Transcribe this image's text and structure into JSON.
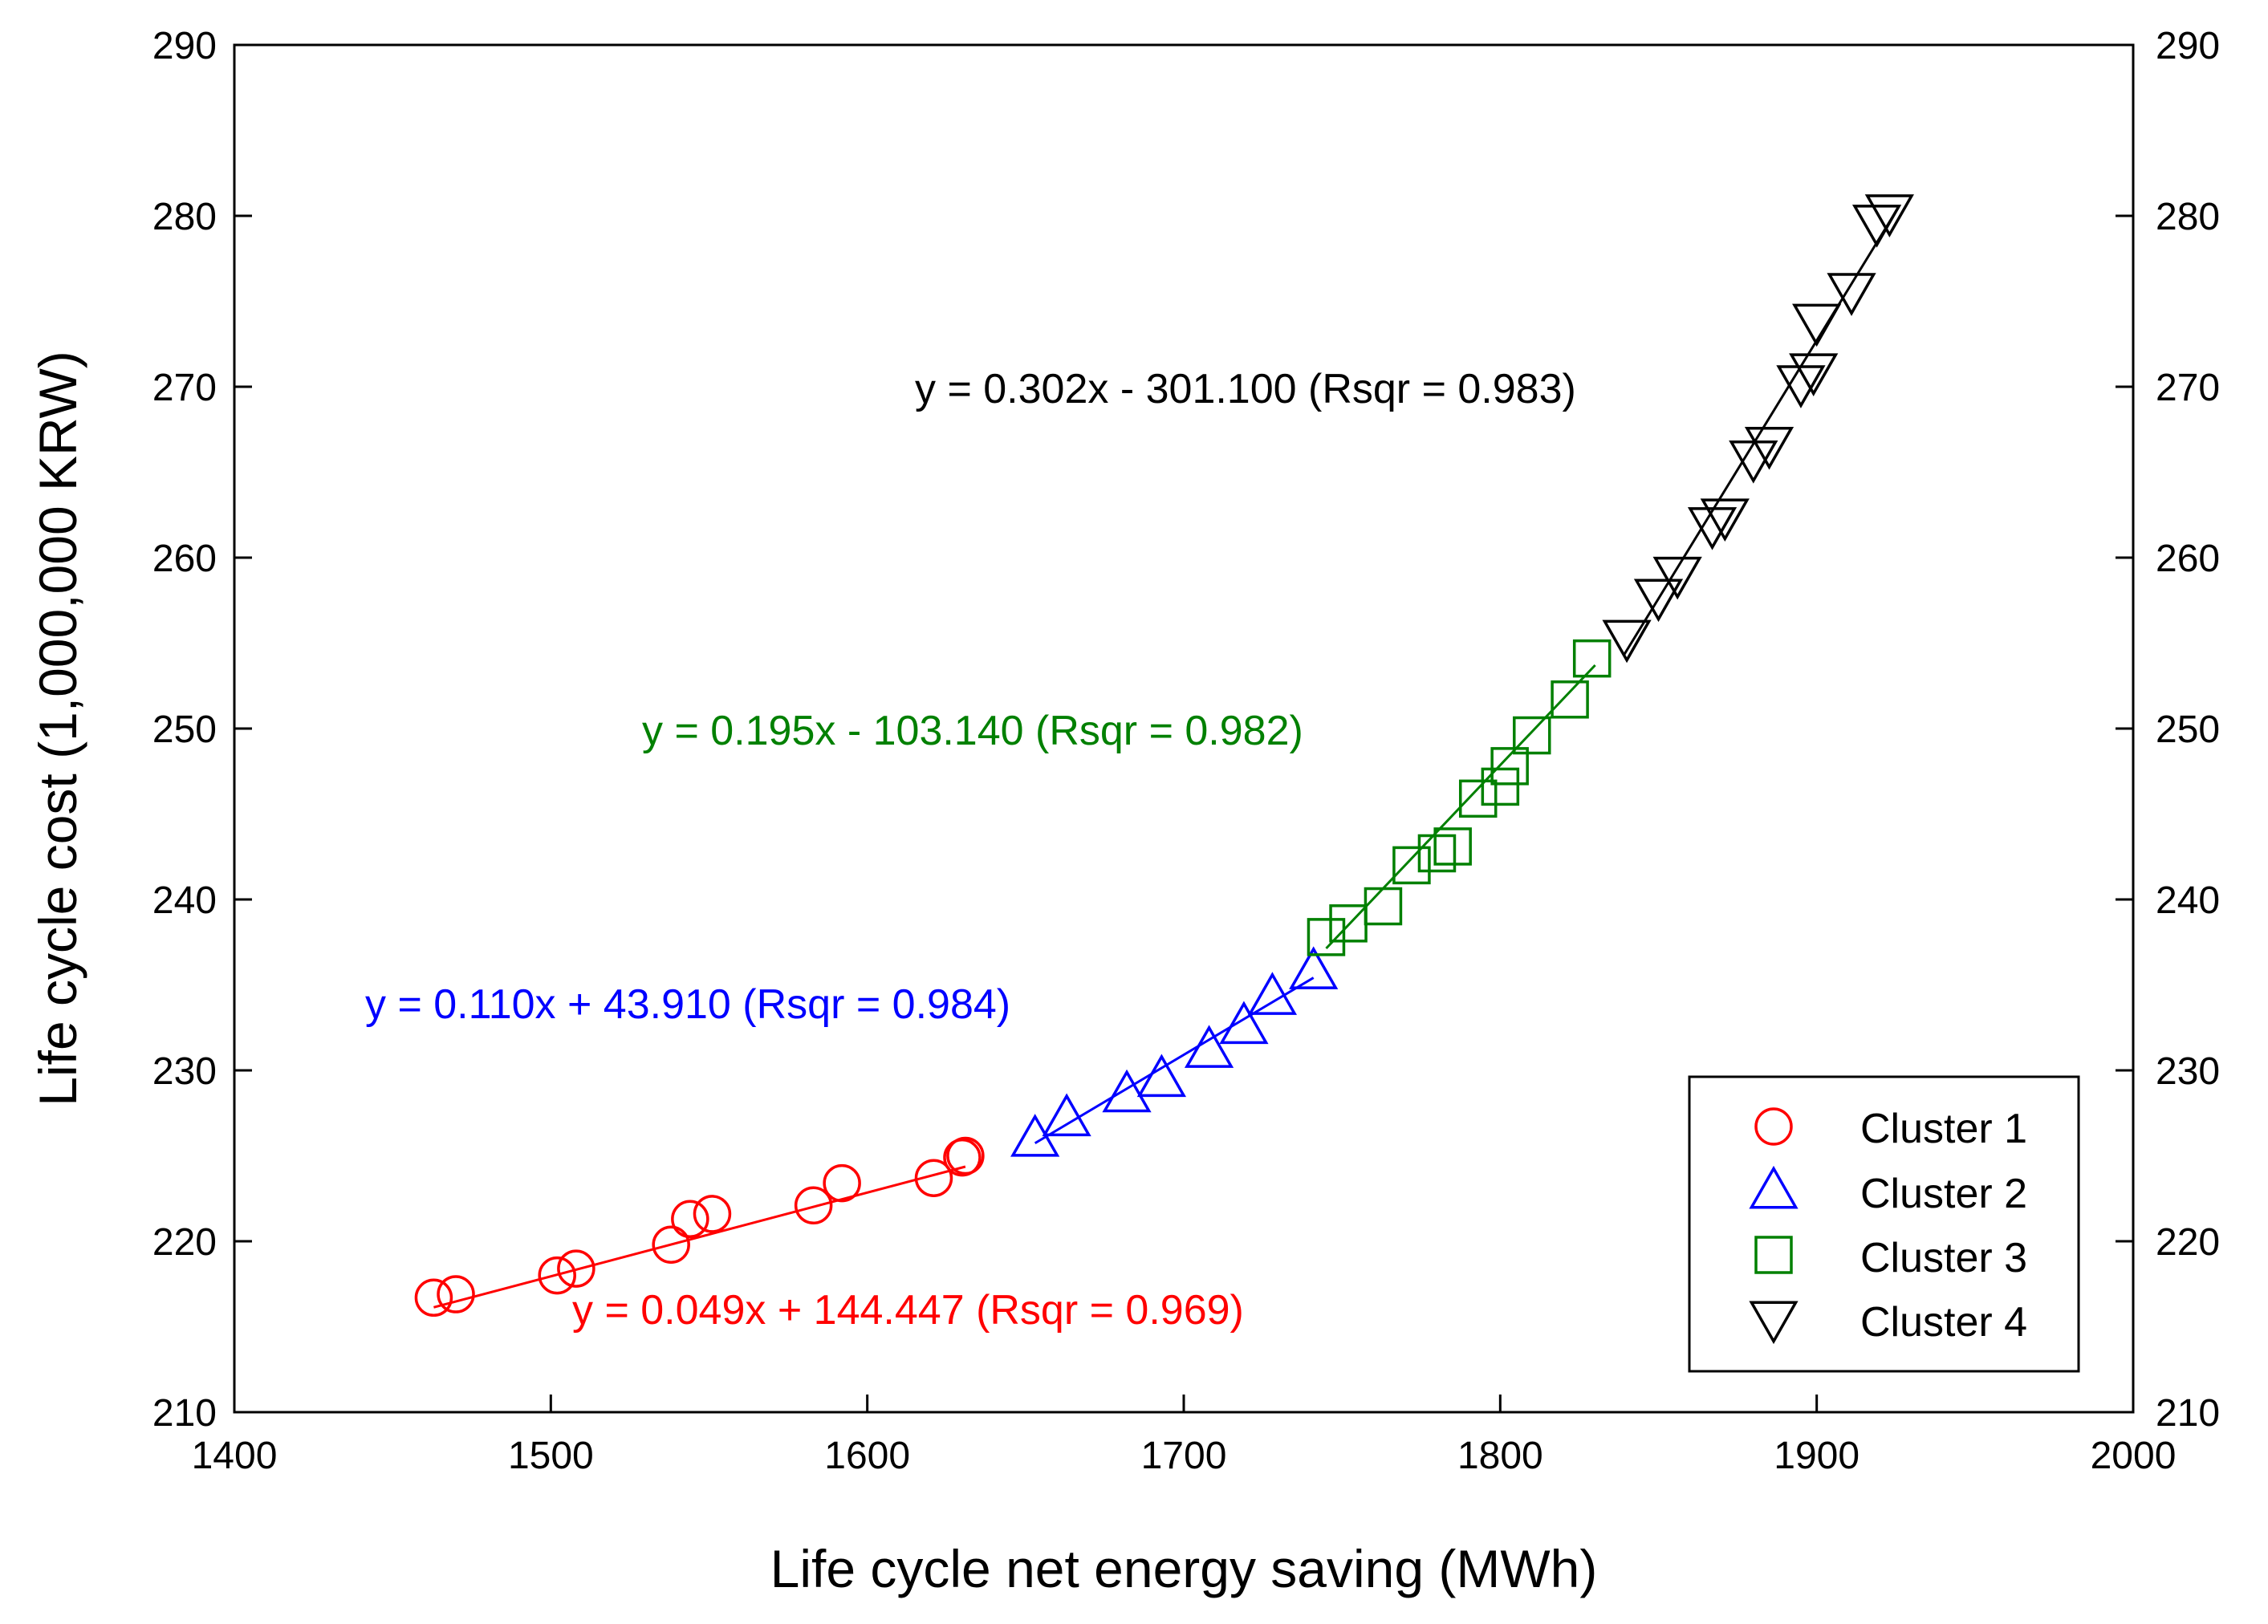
{
  "chart_data": {
    "type": "scatter",
    "title": "",
    "xlabel": "Life cycle net energy saving (MWh)",
    "ylabel": "Life cycle cost (1,000,000 KRW)",
    "xlim": [
      1400,
      2000
    ],
    "ylim": [
      210,
      290
    ],
    "xticks": [
      1400,
      1500,
      1600,
      1700,
      1800,
      1900,
      2000
    ],
    "yticks": [
      210,
      220,
      230,
      240,
      250,
      260,
      270,
      280,
      290
    ],
    "xtick_labels": [
      "1400",
      "1500",
      "1600",
      "1700",
      "1800",
      "1900",
      "2000"
    ],
    "ytick_labels": [
      "210",
      "220",
      "230",
      "240",
      "250",
      "260",
      "270",
      "280",
      "290"
    ],
    "grid": false,
    "legend_position": "bottom-right",
    "series": [
      {
        "name": "Cluster 1",
        "marker": "circle",
        "color": "#ff0000",
        "x": [
          1463,
          1470,
          1502,
          1508,
          1538,
          1544,
          1551,
          1583,
          1592,
          1621,
          1630,
          1631
        ],
        "y": [
          216.7,
          216.9,
          218.0,
          218.4,
          219.8,
          221.3,
          221.6,
          222.1,
          223.4,
          223.7,
          224.9,
          225.0
        ],
        "fit": {
          "slope": 0.049,
          "intercept": 144.447,
          "x_range": [
            1463,
            1631
          ]
        },
        "equation": "y = 0.049x + 144.447 (Rsqr = 0.969)"
      },
      {
        "name": "Cluster 2",
        "marker": "triangle-up",
        "color": "#0000ff",
        "x": [
          1653,
          1663,
          1682,
          1693,
          1708,
          1719,
          1728,
          1741
        ],
        "y": [
          226.0,
          227.2,
          228.6,
          229.5,
          231.2,
          232.6,
          234.3,
          235.8
        ],
        "fit": {
          "slope": 0.11,
          "intercept": 43.91,
          "x_range": [
            1653,
            1741
          ]
        },
        "equation": "y = 0.110x + 43.910 (Rsqr = 0.984)"
      },
      {
        "name": "Cluster 3",
        "marker": "square",
        "color": "#008000",
        "x": [
          1745,
          1752,
          1763,
          1772,
          1780,
          1785,
          1793,
          1800,
          1803,
          1810,
          1822,
          1829
        ],
        "y": [
          237.8,
          238.6,
          239.6,
          242.0,
          242.7,
          243.1,
          245.9,
          246.6,
          247.8,
          249.6,
          251.7,
          254.1
        ],
        "fit": {
          "slope": 0.195,
          "intercept": -103.14,
          "x_range": [
            1745,
            1830
          ]
        },
        "equation": "y = 0.195x - 103.140 (Rsqr = 0.982)"
      },
      {
        "name": "Cluster 4",
        "marker": "triangle-down",
        "color": "#000000",
        "x": [
          1840,
          1850,
          1856,
          1867,
          1871,
          1880,
          1885,
          1895,
          1899,
          1900,
          1911,
          1919,
          1923
        ],
        "y": [
          255.3,
          257.7,
          259.0,
          261.9,
          262.4,
          265.8,
          266.6,
          270.2,
          270.9,
          273.8,
          275.6,
          279.6,
          280.2
        ],
        "fit": {
          "slope": 0.302,
          "intercept": -301.1,
          "x_range": [
            1839,
            1926
          ]
        },
        "equation": "y = 0.302x - 301.100 (Rsqr = 0.983)"
      }
    ]
  }
}
